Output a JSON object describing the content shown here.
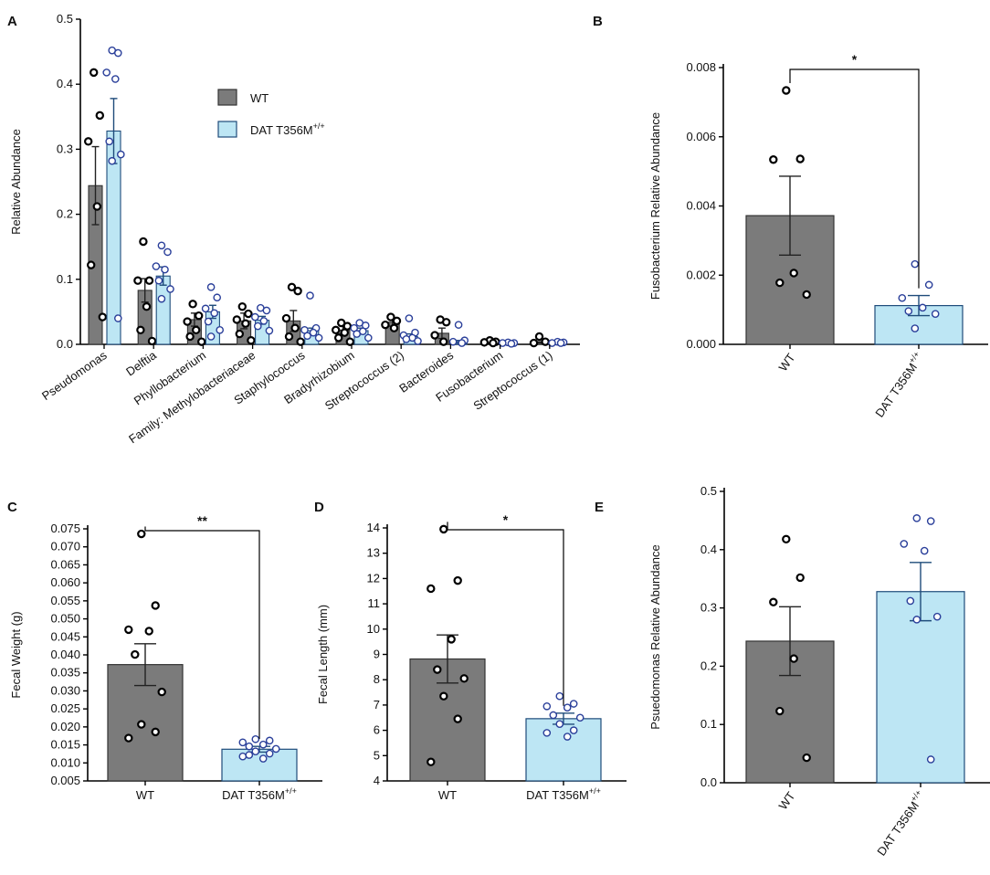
{
  "colors": {
    "wt_fill": "#7b7b7b",
    "mut_fill": "#bde6f4",
    "mut_edge": "#1e4b7a",
    "mut_dot": "#2a3f9a",
    "wt_dot": "#000000"
  },
  "chart_data": [
    {
      "panel": "A",
      "type": "bar",
      "title": "",
      "xlabel": "",
      "ylabel": "Relative Abundance",
      "ylim": [
        0,
        0.5
      ],
      "yticks": [
        "0.0",
        "0.1",
        "0.2",
        "0.3",
        "0.4",
        "0.5"
      ],
      "legend": {
        "position": "top-center",
        "wt_label": "WT",
        "mut_label": "DAT T356M",
        "mut_sup": "+/+"
      },
      "categories": [
        "Pseudomonas",
        "Delftia",
        "Phyllobacterium",
        "Family: Methylobacteriaceae",
        "Staphylococcus",
        "Bradyrhizobium",
        "Streptococcus (2)",
        "Bacteroides",
        "Fusobacterium",
        "Streptococcus (1)"
      ],
      "series": [
        {
          "name": "WT",
          "values": [
            0.244,
            0.083,
            0.038,
            0.036,
            0.036,
            0.022,
            0.034,
            0.017,
            0.004,
            0.003
          ],
          "errors": [
            0.06,
            0.018,
            0.01,
            0.012,
            0.016,
            0.006,
            0.006,
            0.008,
            0.001,
            0.001
          ],
          "points": [
            [
              0.418,
              0.352,
              0.312,
              0.212,
              0.122,
              0.042
            ],
            [
              0.158,
              0.098,
              0.098,
              0.058,
              0.022,
              0.005
            ],
            [
              0.062,
              0.044,
              0.035,
              0.022,
              0.012,
              0.004
            ],
            [
              0.058,
              0.047,
              0.038,
              0.032,
              0.016,
              0.006
            ],
            [
              0.088,
              0.082,
              0.04,
              0.025,
              0.012,
              0.004
            ],
            [
              0.033,
              0.028,
              0.022,
              0.018,
              0.01,
              0.004
            ],
            [
              0.042,
              0.036,
              0.03,
              0.025
            ],
            [
              0.038,
              0.034,
              0.014,
              0.004
            ],
            [
              0.006,
              0.004,
              0.003,
              0.002
            ],
            [
              0.012,
              0.004,
              0.002
            ]
          ]
        },
        {
          "name": "DAT T356M+/+",
          "values": [
            0.328,
            0.105,
            0.05,
            0.037,
            0.021,
            0.021,
            0.012,
            0.004,
            0.002,
            0.003
          ],
          "errors": [
            0.05,
            0.014,
            0.01,
            0.006,
            0.004,
            0.004,
            0.004,
            0.002,
            0.001,
            0.001
          ],
          "points": [
            [
              0.452,
              0.448,
              0.418,
              0.408,
              0.312,
              0.292,
              0.282,
              0.04
            ],
            [
              0.152,
              0.142,
              0.12,
              0.115,
              0.098,
              0.085,
              0.07
            ],
            [
              0.088,
              0.072,
              0.055,
              0.048,
              0.035,
              0.022,
              0.012
            ],
            [
              0.056,
              0.052,
              0.042,
              0.036,
              0.028,
              0.021
            ],
            [
              0.075,
              0.025,
              0.022,
              0.018,
              0.013,
              0.01
            ],
            [
              0.033,
              0.029,
              0.025,
              0.02,
              0.016,
              0.01
            ],
            [
              0.04,
              0.018,
              0.014,
              0.01,
              0.008,
              0.005
            ],
            [
              0.03,
              0.006,
              0.004,
              0.002
            ],
            [
              0.003,
              0.002,
              0.002,
              0.001
            ],
            [
              0.004,
              0.003,
              0.002,
              0.002
            ]
          ]
        }
      ]
    },
    {
      "panel": "B",
      "type": "bar",
      "ylabel": "Fusobacterium Relative Abundance",
      "ylim": [
        0,
        0.008
      ],
      "yticks": [
        "0.000",
        "0.002",
        "0.004",
        "0.006",
        "0.008"
      ],
      "categories": [
        "WT",
        "DAT T356M"
      ],
      "cat_sup": [
        "",
        "+/+"
      ],
      "values": [
        0.00372,
        0.00112
      ],
      "errors": [
        0.00114,
        0.00029
      ],
      "points": [
        [
          0.00734,
          0.00536,
          0.00534,
          0.00206,
          0.00178,
          0.00144
        ],
        [
          0.00232,
          0.00172,
          0.00134,
          0.00106,
          0.00096,
          0.00088,
          0.00046
        ]
      ],
      "significance": "*"
    },
    {
      "panel": "C",
      "type": "bar",
      "ylabel": "Fecal Weight (g)",
      "ylim": [
        0.005,
        0.075
      ],
      "yticks": [
        "0.005",
        "0.010",
        "0.015",
        "0.020",
        "0.025",
        "0.030",
        "0.035",
        "0.040",
        "0.045",
        "0.050",
        "0.055",
        "0.060",
        "0.065",
        "0.070",
        "0.075"
      ],
      "categories": [
        "WT",
        "DAT T356M"
      ],
      "cat_sup": [
        "",
        "+/+"
      ],
      "values": [
        0.0373,
        0.0138
      ],
      "errors": [
        0.0058,
        0.0008
      ],
      "points": [
        [
          0.0736,
          0.0537,
          0.047,
          0.0466,
          0.0401,
          0.0297,
          0.0207,
          0.0186,
          0.0169
        ],
        [
          0.0166,
          0.0162,
          0.0157,
          0.0151,
          0.0146,
          0.0139,
          0.0132,
          0.0126,
          0.0118,
          0.0112,
          0.0122
        ]
      ],
      "significance": "**"
    },
    {
      "panel": "D",
      "type": "bar",
      "ylabel": "Fecal Length (mm)",
      "ylim": [
        4,
        14
      ],
      "yticks": [
        "4",
        "5",
        "6",
        "7",
        "8",
        "9",
        "10",
        "11",
        "12",
        "13",
        "14"
      ],
      "categories": [
        "WT",
        "DAT T356M"
      ],
      "cat_sup": [
        "",
        "+/+"
      ],
      "values": [
        8.82,
        6.46
      ],
      "errors": [
        0.95,
        0.22
      ],
      "points": [
        [
          13.95,
          11.92,
          11.6,
          9.6,
          8.4,
          8.05,
          7.35,
          6.45,
          4.75
        ],
        [
          7.35,
          7.05,
          6.95,
          6.9,
          6.6,
          6.5,
          6.25,
          6.0,
          5.9,
          5.75
        ]
      ],
      "significance": "*"
    },
    {
      "panel": "E",
      "type": "bar",
      "ylabel": "Psuedomonas Relative Abundance",
      "ylim": [
        0,
        0.5
      ],
      "yticks": [
        "0.0",
        "0.1",
        "0.2",
        "0.3",
        "0.4",
        "0.5"
      ],
      "categories": [
        "WT",
        "DAT T356M"
      ],
      "cat_sup": [
        "",
        "+/+"
      ],
      "values": [
        0.243,
        0.328
      ],
      "errors": [
        0.059,
        0.05
      ],
      "points": [
        [
          0.418,
          0.352,
          0.31,
          0.213,
          0.123,
          0.043
        ],
        [
          0.454,
          0.449,
          0.41,
          0.398,
          0.312,
          0.285,
          0.28,
          0.04
        ]
      ],
      "significance": ""
    }
  ]
}
